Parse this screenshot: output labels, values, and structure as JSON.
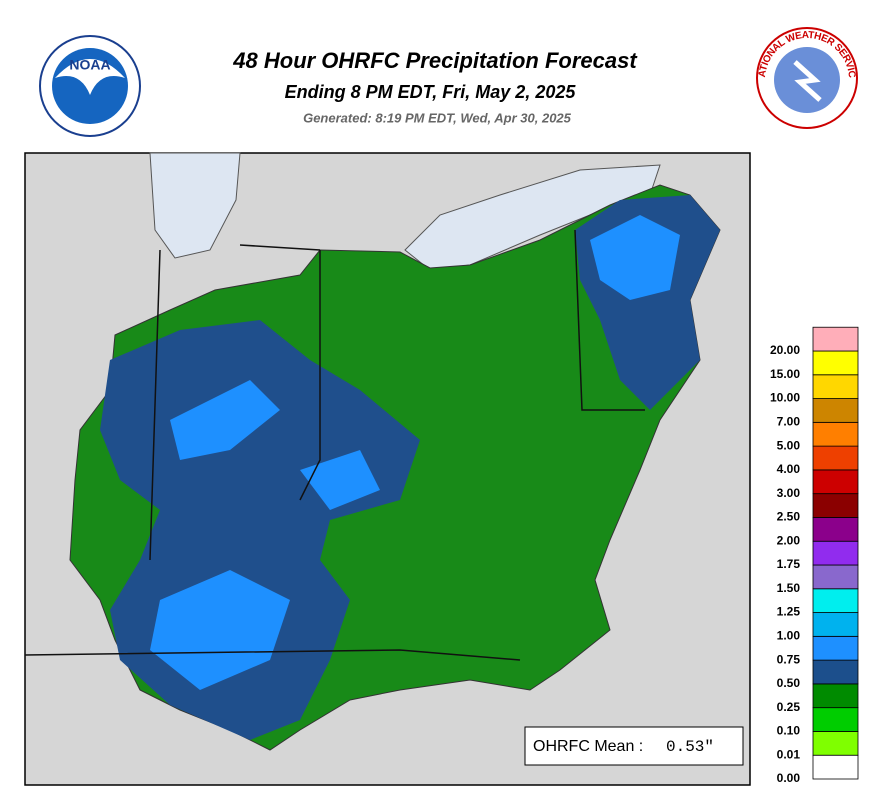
{
  "header": {
    "title": "48 Hour OHRFC Precipitation Forecast",
    "subtitle": "Ending 8 PM EDT, Fri, May 2, 2025",
    "generated": "Generated: 8:19 PM EDT, Wed, Apr 30, 2025"
  },
  "logos": {
    "noaa": "NOAA",
    "nws": "NATIONAL WEATHER SERVICE"
  },
  "legend": {
    "levels": [
      {
        "value": 0,
        "label": "0.00"
      },
      {
        "value": 0.01,
        "label": "0.01"
      },
      {
        "value": 0.1,
        "label": "0.10"
      },
      {
        "value": 0.25,
        "label": "0.25"
      },
      {
        "value": 0.5,
        "label": "0.50"
      },
      {
        "value": 0.75,
        "label": "0.75"
      },
      {
        "value": 1,
        "label": "1.00"
      },
      {
        "value": 1.25,
        "label": "1.25"
      },
      {
        "value": 1.5,
        "label": "1.50"
      },
      {
        "value": 1.75,
        "label": "1.75"
      },
      {
        "value": 2,
        "label": "2.00"
      },
      {
        "value": 2.5,
        "label": "2.50"
      },
      {
        "value": 3,
        "label": "3.00"
      },
      {
        "value": 4,
        "label": "4.00"
      },
      {
        "value": 5,
        "label": "5.00"
      },
      {
        "value": 7,
        "label": "7.00"
      },
      {
        "value": 10,
        "label": "10.00"
      },
      {
        "value": 15,
        "label": "15.00"
      },
      {
        "value": 20,
        "label": "20.00"
      }
    ],
    "colors": [
      "#ffffff",
      "#7fff00",
      "#00cd00",
      "#008b00",
      "#1c4f8c",
      "#1e90ff",
      "#00b2ee",
      "#00eeee",
      "#8968cd",
      "#912cee",
      "#8b008b",
      "#8b0000",
      "#cd0000",
      "#ee4000",
      "#ff7f00",
      "#cd8500",
      "#ffd700",
      "#ffff00",
      "#ffaeb9"
    ]
  },
  "mean": {
    "label": "OHRFC Mean :",
    "value": "0.53\""
  }
}
